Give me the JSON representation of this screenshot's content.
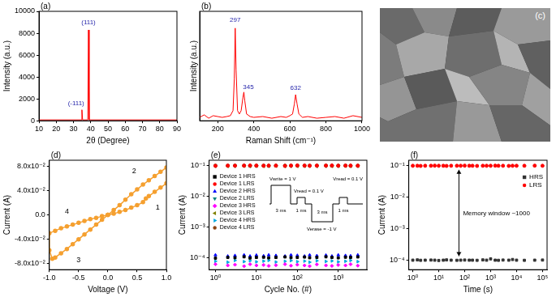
{
  "chart_data": [
    {
      "type": "line",
      "title": "(a)",
      "x_label": "2θ (Degree)",
      "y_label": "Intensity (a.u.)",
      "x": [
        10,
        34.5,
        34.9,
        35.3,
        38.3,
        38.7,
        39.1,
        90
      ],
      "values": [
        80,
        80,
        1000,
        80,
        80,
        8300,
        80,
        80
      ],
      "color": "#ff0000",
      "xlim": [
        10,
        90
      ],
      "xticks": [
        10,
        20,
        30,
        40,
        50,
        60,
        70,
        80,
        90
      ],
      "ylim": [
        0,
        10000
      ],
      "yticks": [
        0,
        2000,
        4000,
        6000,
        8000,
        10000
      ],
      "grid": false,
      "annotations": [
        {
          "text": "(-111)",
          "x": 31.5,
          "y": 1600,
          "color": "#1f1fa8"
        },
        {
          "text": "(111)",
          "x": 38.7,
          "y": 9000,
          "color": "#1f1fa8"
        }
      ]
    },
    {
      "type": "line",
      "title": "(b)",
      "x_label": "Raman Shift (cm⁻¹)",
      "y_label": "Intensity (a.u.)",
      "x": [
        100,
        125,
        150,
        175,
        200,
        225,
        250,
        270,
        285,
        292,
        297,
        302,
        310,
        320,
        330,
        340,
        345,
        350,
        360,
        380,
        400,
        450,
        500,
        550,
        580,
        600,
        615,
        625,
        632,
        640,
        650,
        670,
        700,
        750,
        800,
        850,
        900,
        950,
        1000
      ],
      "values": [
        20,
        35,
        15,
        30,
        25,
        20,
        25,
        30,
        60,
        250,
        550,
        300,
        60,
        40,
        60,
        140,
        170,
        120,
        40,
        25,
        20,
        25,
        15,
        25,
        20,
        30,
        40,
        100,
        155,
        100,
        40,
        20,
        25,
        15,
        20,
        25,
        15,
        30,
        20
      ],
      "color": "#ff0000",
      "xlim": [
        100,
        1000
      ],
      "xticks": [
        200,
        400,
        600,
        800,
        1000
      ],
      "ylim": [
        0,
        650
      ],
      "tick_labels": "x",
      "grid": false,
      "annotations": [
        {
          "text": "297",
          "x": 297,
          "y": 600,
          "color": "#1f1fa8"
        },
        {
          "text": "345",
          "x": 370,
          "y": 200,
          "color": "#1f1fa8"
        },
        {
          "text": "632",
          "x": 632,
          "y": 195,
          "color": "#1f1fa8"
        }
      ]
    },
    {
      "type": "line",
      "title": "(d)",
      "x_label": "Voltage (V)",
      "y_label": "Current (A)",
      "x": [
        0,
        0.1,
        0.2,
        0.3,
        0.4,
        0.5,
        0.6,
        0.65,
        0.7,
        0.8,
        0.9,
        1.0,
        1.0,
        0.9,
        0.8,
        0.7,
        0.6,
        0.5,
        0.4,
        0.3,
        0.2,
        0.1,
        0,
        -0.1,
        -0.2,
        -0.3,
        -0.4,
        -0.5,
        -0.6,
        -0.7,
        -0.8,
        -0.9,
        -0.95,
        -1.0,
        -1.0,
        -0.9,
        -0.8,
        -0.7,
        -0.6,
        -0.5,
        -0.4,
        -0.3,
        -0.2,
        -0.1,
        0
      ],
      "values": [
        0,
        0.002,
        0.005,
        0.008,
        0.012,
        0.016,
        0.021,
        0.027,
        0.031,
        0.038,
        0.045,
        0.052,
        0.078,
        0.071,
        0.064,
        0.057,
        0.05,
        0.042,
        0.034,
        0.025,
        0.016,
        0.008,
        0,
        -0.008,
        -0.016,
        -0.024,
        -0.032,
        -0.04,
        -0.048,
        -0.056,
        -0.063,
        -0.07,
        -0.072,
        -0.058,
        -0.03,
        -0.026,
        -0.022,
        -0.019,
        -0.016,
        -0.013,
        -0.01,
        -0.007,
        -0.005,
        -0.002,
        0
      ],
      "color": "#f5a030",
      "marker": "circle",
      "xlim": [
        -1.0,
        1.0
      ],
      "xticks": [
        {
          "value": -1.0,
          "label": "-1.0"
        },
        {
          "value": -0.5,
          "label": "-0.5"
        },
        {
          "value": 0,
          "label": "0.0"
        },
        {
          "value": 0.5,
          "label": "0.5"
        },
        {
          "value": 1.0,
          "label": "1.0"
        }
      ],
      "ylim": [
        -0.09,
        0.09
      ],
      "yticks": [
        {
          "value": -0.08,
          "label": "-8.0x10⁻²"
        },
        {
          "value": -0.04,
          "label": "-4.0x10⁻²"
        },
        {
          "value": 0,
          "label": "0.0"
        },
        {
          "value": 0.04,
          "label": "4.0x10⁻²"
        },
        {
          "value": 0.08,
          "label": "8.0x10⁻²"
        }
      ],
      "grid": false,
      "annotations": [
        {
          "text": "1",
          "x": 0.85,
          "y": 0.012
        },
        {
          "text": "2",
          "x": 0.45,
          "y": 0.072
        },
        {
          "text": "3",
          "x": -0.5,
          "y": -0.075
        },
        {
          "text": "4",
          "x": -0.7,
          "y": 0.006
        }
      ]
    },
    {
      "type": "scatter",
      "title": "(e)",
      "x_label": "Cycle No. (#)",
      "y_label": "Current (A)",
      "log": true,
      "x": [
        1,
        2,
        3,
        5,
        7,
        10,
        15,
        20,
        30,
        50,
        70,
        100,
        150,
        200,
        300,
        500,
        700,
        1000,
        1500,
        2000,
        3000
      ],
      "series": [
        {
          "name": "Device 1 HRS",
          "color": "#000000",
          "marker": "square",
          "values": [
            9.5e-05,
            0.0001,
            9.8e-05,
            0.000105,
            9.6e-05,
            0.0001,
            0.000102,
            9.7e-05,
            0.0001,
            0.000104,
            9.9e-05,
            0.0001,
            0.000103,
            9.8e-05,
            0.0001,
            0.000105,
            0.0001,
            9.7e-05,
            0.000102,
            0.0001,
            0.000104
          ]
        },
        {
          "name": "Device 1 LRS",
          "color": "#ff0000",
          "marker": "circle",
          "values": [
            0.098,
            0.1,
            0.099,
            0.1,
            0.101,
            0.1,
            0.099,
            0.1,
            0.1,
            0.098,
            0.1,
            0.101,
            0.1,
            0.099,
            0.1,
            0.1,
            0.101,
            0.099,
            0.1,
            0.1,
            0.099
          ]
        },
        {
          "name": "Device 2 HRS",
          "color": "#0000ff",
          "marker": "triangle",
          "values": [
            0.00012,
            0.00011,
            0.000115,
            0.00012,
            0.00011,
            0.000118,
            0.000112,
            0.00012,
            0.000115,
            0.00011,
            0.00012,
            0.000116,
            0.00011,
            0.00012,
            0.000114,
            0.000118,
            0.00011,
            0.00012,
            0.000115,
            0.000112,
            0.00012
          ]
        },
        {
          "name": "Device 2 LRS",
          "color": "#008080",
          "marker": "triangle_down",
          "values": [
            0.097,
            0.098,
            0.097,
            0.098,
            0.097,
            0.097,
            0.098,
            0.097,
            0.098,
            0.097,
            0.097,
            0.098,
            0.097,
            0.098,
            0.097,
            0.097,
            0.098,
            0.097,
            0.098,
            0.097,
            0.097
          ]
        },
        {
          "name": "Device 3 HRS",
          "color": "#ff00ff",
          "marker": "diamond",
          "values": [
            6e-05,
            5.5e-05,
            5.8e-05,
            5.2e-05,
            6e-05,
            5.5e-05,
            5.7e-05,
            5.3e-05,
            5.6e-05,
            6e-05,
            5.4e-05,
            5.8e-05,
            5.5e-05,
            5.2e-05,
            5.9e-05,
            5.5e-05,
            5.3e-05,
            5.7e-05,
            5.5e-05,
            6e-05,
            5.4e-05
          ]
        },
        {
          "name": "Device 3 LRS",
          "color": "#808000",
          "marker": "triangle_left",
          "values": [
            0.096,
            0.095,
            0.096,
            0.096,
            0.095,
            0.096,
            0.095,
            0.096,
            0.096,
            0.095,
            0.096,
            0.095,
            0.096,
            0.096,
            0.095,
            0.096,
            0.095,
            0.096,
            0.096,
            0.095,
            0.096
          ]
        },
        {
          "name": "Device 4 HRS",
          "color": "#00a8e0",
          "marker": "triangle_right",
          "values": [
            7.5e-05,
            7e-05,
            8e-05,
            7.3e-05,
            7.8e-05,
            7.2e-05,
            7.6e-05,
            8e-05,
            7.1e-05,
            7.5e-05,
            7.9e-05,
            7.3e-05,
            7.6e-05,
            7e-05,
            7.8e-05,
            7.4e-05,
            7.7e-05,
            7.2e-05,
            7.5e-05,
            8e-05,
            7.3e-05
          ]
        },
        {
          "name": "Device 4 LRS",
          "color": "#8b4513",
          "marker": "circle",
          "values": [
            0.1,
            0.099,
            0.1,
            0.1,
            0.099,
            0.1,
            0.1,
            0.099,
            0.1,
            0.1,
            0.099,
            0.1,
            0.1,
            0.099,
            0.1,
            0.1,
            0.099,
            0.1,
            0.1,
            0.099,
            0.1
          ]
        }
      ],
      "xlim": [
        0.7,
        5000
      ],
      "xticks": [
        {
          "value": 1,
          "label": "10⁰"
        },
        {
          "value": 10,
          "label": "10¹"
        },
        {
          "value": 100,
          "label": "10²"
        },
        {
          "value": 1000,
          "label": "10³"
        }
      ],
      "ylim": [
        4e-05,
        0.15
      ],
      "yticks": [
        {
          "value": 0.0001,
          "label": "10⁻⁴"
        },
        {
          "value": 0.001,
          "label": "10⁻³"
        },
        {
          "value": 0.01,
          "label": "10⁻²"
        },
        {
          "value": 0.1,
          "label": "10⁻¹"
        }
      ],
      "grid": false,
      "legend": "upper left",
      "annotations": [
        "Vwrite = 1 V",
        "3 ms",
        "Vread = 0.1 V",
        "1 ms",
        "Verase = -1 V",
        "3 ms",
        "Vread = 0.1 V",
        "1 ms"
      ]
    },
    {
      "type": "scatter",
      "title": "(f)",
      "x_label": "Time (s)",
      "y_label": "Current (A)",
      "log": true,
      "x": [
        1,
        1.5,
        2,
        3,
        5,
        7,
        10,
        15,
        20,
        30,
        50,
        70,
        100,
        150,
        200,
        300,
        500,
        700,
        1000,
        1500,
        2000,
        3000,
        5000,
        7000,
        10000,
        20000,
        50000,
        100000
      ],
      "series": [
        {
          "name": "HRS",
          "color": "#333333",
          "marker": "square",
          "values": [
            0.0001,
            0.000102,
            9.9e-05,
            0.0001,
            0.000101,
            0.0001,
            9.8e-05,
            0.0001,
            0.000102,
            0.0001,
            9.9e-05,
            0.0001,
            0.000101,
            0.0001,
            0.0001,
            9.9e-05,
            0.000102,
            0.0001,
            0.00011,
            0.0001,
            9.9e-05,
            0.000101,
            0.0001,
            0.000105,
            0.0001,
            9.9e-05,
            0.0001,
            0.000101
          ]
        },
        {
          "name": "LRS",
          "color": "#ff0000",
          "marker": "circle",
          "values": [
            0.1,
            0.1,
            0.099,
            0.1,
            0.1,
            0.101,
            0.1,
            0.1,
            0.099,
            0.1,
            0.1,
            0.1,
            0.101,
            0.1,
            0.1,
            0.099,
            0.1,
            0.1,
            0.1,
            0.101,
            0.1,
            0.1,
            0.099,
            0.1,
            0.1,
            0.1,
            0.101,
            0.1
          ]
        }
      ],
      "xlim": [
        0.7,
        150000
      ],
      "xticks": [
        {
          "value": 1,
          "label": "10⁰"
        },
        {
          "value": 10,
          "label": "10¹"
        },
        {
          "value": 100,
          "label": "10²"
        },
        {
          "value": 1000,
          "label": "10³"
        },
        {
          "value": 10000,
          "label": "10⁴"
        },
        {
          "value": 100000,
          "label": "10⁵"
        }
      ],
      "ylim": [
        5e-05,
        0.15
      ],
      "yticks": [
        {
          "value": 0.0001,
          "label": "10⁻⁴"
        },
        {
          "value": 0.001,
          "label": "10⁻³"
        },
        {
          "value": 0.01,
          "label": "10⁻²"
        },
        {
          "value": 0.1,
          "label": "10⁻¹"
        }
      ],
      "grid": false,
      "legend": "upper right",
      "annotations": [
        {
          "text": "Memory window ~1000",
          "x": 60,
          "y": 0.003
        }
      ]
    }
  ],
  "image": {
    "title": "(c)"
  }
}
